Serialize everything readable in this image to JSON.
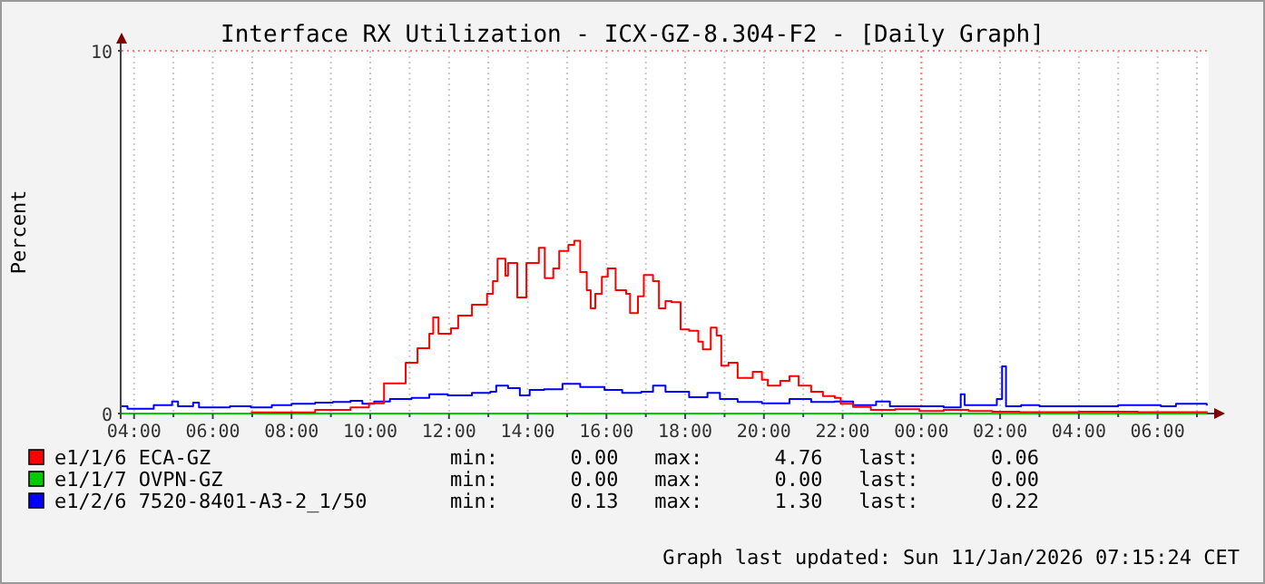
{
  "chart_data": {
    "type": "step",
    "title": "Interface RX Utilization - ICX-GZ-8.304-F2 - [Daily Graph]",
    "ylabel": "Percent",
    "xlim": [
      "2026-01-10T03:41",
      "2026-01-11T07:18"
    ],
    "ylim": [
      0,
      10
    ],
    "yticks": [
      0,
      10
    ],
    "xticks": [
      {
        "value": "2026-01-10T04:00",
        "label": "04:00"
      },
      {
        "value": "2026-01-10T05:00",
        "label": null
      },
      {
        "value": "2026-01-10T06:00",
        "label": "06:00"
      },
      {
        "value": "2026-01-10T07:00",
        "label": null
      },
      {
        "value": "2026-01-10T08:00",
        "label": "08:00"
      },
      {
        "value": "2026-01-10T09:00",
        "label": null
      },
      {
        "value": "2026-01-10T10:00",
        "label": "10:00"
      },
      {
        "value": "2026-01-10T11:00",
        "label": null
      },
      {
        "value": "2026-01-10T12:00",
        "label": "12:00"
      },
      {
        "value": "2026-01-10T13:00",
        "label": null
      },
      {
        "value": "2026-01-10T14:00",
        "label": "14:00"
      },
      {
        "value": "2026-01-10T15:00",
        "label": null
      },
      {
        "value": "2026-01-10T16:00",
        "label": "16:00"
      },
      {
        "value": "2026-01-10T17:00",
        "label": null
      },
      {
        "value": "2026-01-10T18:00",
        "label": "18:00"
      },
      {
        "value": "2026-01-10T19:00",
        "label": null
      },
      {
        "value": "2026-01-10T20:00",
        "label": "20:00"
      },
      {
        "value": "2026-01-10T21:00",
        "label": null
      },
      {
        "value": "2026-01-10T22:00",
        "label": "22:00"
      },
      {
        "value": "2026-01-10T23:00",
        "label": null
      },
      {
        "value": "2026-01-11T00:00",
        "label": "00:00"
      },
      {
        "value": "2026-01-11T01:00",
        "label": null
      },
      {
        "value": "2026-01-11T02:00",
        "label": "02:00"
      },
      {
        "value": "2026-01-11T03:00",
        "label": null
      },
      {
        "value": "2026-01-11T04:00",
        "label": "04:00"
      },
      {
        "value": "2026-01-11T05:00",
        "label": null
      },
      {
        "value": "2026-01-11T06:00",
        "label": "06:00"
      },
      {
        "value": "2026-01-11T07:00",
        "label": null
      }
    ],
    "grid": true,
    "legend": "bottom",
    "ref_lines": [
      {
        "axis": "x",
        "value": "2026-01-11T00:00",
        "color": "#ff8080",
        "line_style": "dotted"
      }
    ],
    "series": [
      {
        "name": "e1/1/6 ECA-GZ",
        "color": "#ff0000",
        "x": [
          "2026-01-10T06:58",
          "2026-01-10T08:36",
          "2026-01-10T09:30",
          "2026-01-10T09:58",
          "2026-01-10T10:21",
          "2026-01-10T10:54",
          "2026-01-10T11:12",
          "2026-01-10T11:30",
          "2026-01-10T11:36",
          "2026-01-10T11:44",
          "2026-01-10T12:03",
          "2026-01-10T12:14",
          "2026-01-10T12:35",
          "2026-01-10T12:58",
          "2026-01-10T13:07",
          "2026-01-10T13:14",
          "2026-01-10T13:26",
          "2026-01-10T13:30",
          "2026-01-10T13:44",
          "2026-01-10T13:58",
          "2026-01-10T14:17",
          "2026-01-10T14:26",
          "2026-01-10T14:39",
          "2026-01-10T14:48",
          "2026-01-10T15:02",
          "2026-01-10T15:11",
          "2026-01-10T15:20",
          "2026-01-10T15:30",
          "2026-01-10T15:36",
          "2026-01-10T15:43",
          "2026-01-10T15:53",
          "2026-01-10T16:02",
          "2026-01-10T16:14",
          "2026-01-10T16:30",
          "2026-01-10T16:36",
          "2026-01-10T16:48",
          "2026-01-10T16:57",
          "2026-01-10T17:11",
          "2026-01-10T17:20",
          "2026-01-10T17:30",
          "2026-01-10T17:39",
          "2026-01-10T17:53",
          "2026-01-10T18:06",
          "2026-01-10T18:20",
          "2026-01-10T18:27",
          "2026-01-10T18:39",
          "2026-01-10T18:48",
          "2026-01-10T18:55",
          "2026-01-10T19:06",
          "2026-01-10T19:20",
          "2026-01-10T19:43",
          "2026-01-10T19:57",
          "2026-01-10T20:06",
          "2026-01-10T20:25",
          "2026-01-10T20:39",
          "2026-01-10T20:53",
          "2026-01-10T21:12",
          "2026-01-10T21:30",
          "2026-01-10T21:48",
          "2026-01-10T21:57",
          "2026-01-10T22:16",
          "2026-01-10T22:43",
          "2026-01-10T23:20",
          "2026-01-10T23:57",
          "2026-01-11T00:34",
          "2026-01-11T01:12",
          "2026-01-11T01:48",
          "2026-01-11T02:30",
          "2026-01-11T04:00",
          "2026-01-11T05:30",
          "2026-01-11T07:15"
        ],
        "values": [
          0.03,
          0.1,
          0.17,
          0.28,
          0.83,
          1.4,
          1.8,
          2.2,
          2.65,
          2.2,
          2.35,
          2.7,
          3.0,
          3.3,
          3.65,
          4.27,
          3.8,
          4.15,
          3.2,
          4.15,
          4.57,
          3.73,
          4.0,
          4.48,
          4.65,
          4.76,
          3.9,
          3.4,
          2.9,
          3.3,
          3.77,
          4.0,
          3.4,
          3.3,
          2.77,
          3.23,
          3.82,
          3.65,
          2.9,
          3.1,
          3.07,
          2.32,
          2.28,
          1.98,
          1.77,
          2.37,
          2.15,
          1.32,
          1.4,
          0.98,
          1.15,
          0.93,
          0.77,
          0.9,
          1.03,
          0.77,
          0.6,
          0.48,
          0.43,
          0.27,
          0.18,
          0.1,
          0.12,
          0.07,
          0.1,
          0.07,
          0.05,
          0.04,
          0.05,
          0.04,
          0.06
        ]
      },
      {
        "name": "e1/1/7 OVPN-GZ",
        "color": "#00cc00",
        "x": [
          "2026-01-10T03:41",
          "2026-01-11T07:15"
        ],
        "values": [
          0.0,
          0.0
        ]
      },
      {
        "name": "e1/2/6 7520-8401-A3-2_1/50",
        "color": "#0000ff",
        "x": [
          "2026-01-10T03:41",
          "2026-01-10T03:50",
          "2026-01-10T04:30",
          "2026-01-10T04:58",
          "2026-01-10T05:07",
          "2026-01-10T05:30",
          "2026-01-10T05:39",
          "2026-01-10T06:26",
          "2026-01-10T06:58",
          "2026-01-10T07:30",
          "2026-01-10T08:00",
          "2026-01-10T08:36",
          "2026-01-10T09:03",
          "2026-01-10T09:30",
          "2026-01-10T09:48",
          "2026-01-10T10:06",
          "2026-01-10T10:30",
          "2026-01-10T11:03",
          "2026-01-10T11:30",
          "2026-01-10T11:58",
          "2026-01-10T12:35",
          "2026-01-10T13:03",
          "2026-01-10T13:12",
          "2026-01-10T13:30",
          "2026-01-10T13:48",
          "2026-01-10T14:03",
          "2026-01-10T14:25",
          "2026-01-10T14:53",
          "2026-01-10T15:20",
          "2026-01-10T15:57",
          "2026-01-10T16:24",
          "2026-01-10T16:53",
          "2026-01-10T17:11",
          "2026-01-10T17:30",
          "2026-01-10T18:06",
          "2026-01-10T18:34",
          "2026-01-10T18:53",
          "2026-01-10T19:20",
          "2026-01-10T19:57",
          "2026-01-10T20:39",
          "2026-01-10T21:12",
          "2026-01-10T21:48",
          "2026-01-10T22:16",
          "2026-01-10T22:51",
          "2026-01-10T23:12",
          "2026-01-10T23:57",
          "2026-01-11T00:34",
          "2026-01-11T01:00",
          "2026-01-11T01:06",
          "2026-01-11T01:28",
          "2026-01-11T01:55",
          "2026-01-11T02:03",
          "2026-01-11T02:09",
          "2026-01-11T02:32",
          "2026-01-11T03:00",
          "2026-01-11T04:05",
          "2026-01-11T05:00",
          "2026-01-11T06:05",
          "2026-01-11T06:28",
          "2026-01-11T07:15"
        ],
        "values": [
          0.2,
          0.13,
          0.23,
          0.33,
          0.2,
          0.3,
          0.17,
          0.2,
          0.17,
          0.23,
          0.27,
          0.3,
          0.32,
          0.35,
          0.27,
          0.33,
          0.4,
          0.43,
          0.53,
          0.5,
          0.57,
          0.6,
          0.77,
          0.7,
          0.5,
          0.65,
          0.67,
          0.82,
          0.73,
          0.65,
          0.57,
          0.6,
          0.77,
          0.6,
          0.45,
          0.57,
          0.4,
          0.32,
          0.28,
          0.4,
          0.32,
          0.33,
          0.23,
          0.33,
          0.2,
          0.2,
          0.17,
          0.53,
          0.23,
          0.23,
          0.4,
          1.3,
          0.2,
          0.23,
          0.2,
          0.2,
          0.23,
          0.2,
          0.27,
          0.22
        ]
      }
    ],
    "annotations": [
      "min:      0.00   max:      4.76   last:      0.06",
      "min:      0.00   max:      0.00   last:      0.00",
      "min:      0.13   max:      1.30   last:      0.22",
      "Graph last updated: Sun 11/Jan/2026 07:15:24 CET"
    ]
  }
}
